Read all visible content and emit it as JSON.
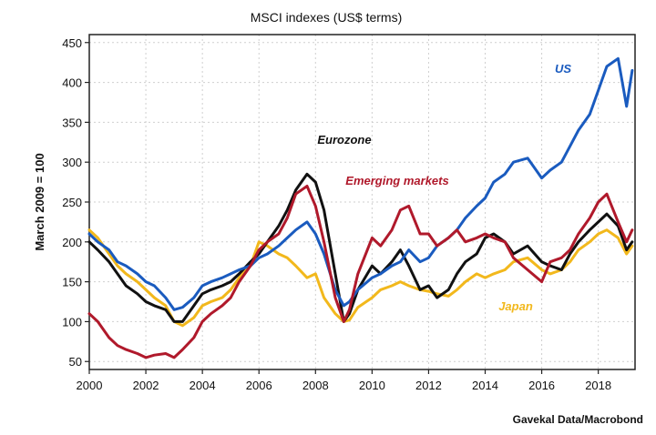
{
  "chart_data": {
    "type": "line",
    "title": "MSCI indexes (US$ terms)",
    "ylabel": "March 2009 = 100",
    "xlabel": "",
    "source": "Gavekal Data/Macrobond",
    "xlim": [
      2000,
      2019.3
    ],
    "ylim": [
      40,
      460
    ],
    "x_ticks": [
      2000,
      2002,
      2004,
      2006,
      2008,
      2010,
      2012,
      2014,
      2016,
      2018
    ],
    "y_ticks": [
      50,
      100,
      150,
      200,
      250,
      300,
      350,
      400,
      450
    ],
    "grid": true,
    "series": [
      {
        "name": "Japan",
        "color": "#f2b81c",
        "x": [
          2000.0,
          2000.3,
          2000.7,
          2001.0,
          2001.3,
          2001.7,
          2002.0,
          2002.3,
          2002.7,
          2003.0,
          2003.3,
          2003.7,
          2004.0,
          2004.3,
          2004.7,
          2005.0,
          2005.3,
          2005.7,
          2006.0,
          2006.3,
          2006.7,
          2007.0,
          2007.3,
          2007.7,
          2008.0,
          2008.3,
          2008.7,
          2009.0,
          2009.2,
          2009.5,
          2010.0,
          2010.3,
          2010.7,
          2011.0,
          2011.3,
          2011.7,
          2012.0,
          2012.3,
          2012.7,
          2013.0,
          2013.3,
          2013.7,
          2014.0,
          2014.3,
          2014.7,
          2015.0,
          2015.5,
          2016.0,
          2016.3,
          2016.7,
          2017.0,
          2017.3,
          2017.7,
          2018.0,
          2018.3,
          2018.7,
          2019.0,
          2019.2
        ],
        "values": [
          215,
          205,
          185,
          170,
          160,
          150,
          140,
          130,
          120,
          100,
          95,
          105,
          120,
          125,
          130,
          140,
          155,
          170,
          200,
          195,
          185,
          180,
          170,
          155,
          160,
          130,
          110,
          100,
          102,
          118,
          130,
          140,
          145,
          150,
          145,
          140,
          138,
          135,
          132,
          140,
          150,
          160,
          155,
          160,
          165,
          175,
          180,
          165,
          160,
          165,
          175,
          190,
          200,
          210,
          215,
          205,
          185,
          195
        ]
      },
      {
        "name": "Eurozone",
        "color": "#111111",
        "x": [
          2000.0,
          2000.3,
          2000.7,
          2001.0,
          2001.3,
          2001.7,
          2002.0,
          2002.3,
          2002.7,
          2003.0,
          2003.3,
          2003.7,
          2004.0,
          2004.3,
          2004.7,
          2005.0,
          2005.3,
          2005.7,
          2006.0,
          2006.3,
          2006.7,
          2007.0,
          2007.3,
          2007.7,
          2008.0,
          2008.3,
          2008.7,
          2009.0,
          2009.2,
          2009.5,
          2010.0,
          2010.3,
          2010.7,
          2011.0,
          2011.3,
          2011.7,
          2012.0,
          2012.3,
          2012.7,
          2013.0,
          2013.3,
          2013.7,
          2014.0,
          2014.3,
          2014.7,
          2015.0,
          2015.5,
          2016.0,
          2016.3,
          2016.7,
          2017.0,
          2017.3,
          2017.7,
          2018.0,
          2018.3,
          2018.7,
          2019.0,
          2019.2
        ],
        "values": [
          200,
          190,
          175,
          160,
          145,
          135,
          125,
          120,
          115,
          100,
          100,
          120,
          135,
          140,
          145,
          150,
          160,
          175,
          185,
          200,
          220,
          240,
          265,
          285,
          275,
          240,
          160,
          100,
          110,
          140,
          170,
          160,
          175,
          190,
          170,
          140,
          145,
          130,
          140,
          160,
          175,
          185,
          205,
          210,
          200,
          185,
          195,
          175,
          170,
          165,
          185,
          200,
          215,
          225,
          235,
          220,
          190,
          200
        ]
      },
      {
        "name": "US",
        "color": "#1a5bbf",
        "x": [
          2000.0,
          2000.3,
          2000.7,
          2001.0,
          2001.3,
          2001.7,
          2002.0,
          2002.3,
          2002.7,
          2003.0,
          2003.3,
          2003.7,
          2004.0,
          2004.3,
          2004.7,
          2005.0,
          2005.3,
          2005.7,
          2006.0,
          2006.3,
          2006.7,
          2007.0,
          2007.3,
          2007.7,
          2008.0,
          2008.3,
          2008.7,
          2009.0,
          2009.2,
          2009.5,
          2010.0,
          2010.3,
          2010.7,
          2011.0,
          2011.3,
          2011.7,
          2012.0,
          2012.3,
          2012.7,
          2013.0,
          2013.3,
          2013.7,
          2014.0,
          2014.3,
          2014.7,
          2015.0,
          2015.5,
          2016.0,
          2016.3,
          2016.7,
          2017.0,
          2017.3,
          2017.7,
          2018.0,
          2018.3,
          2018.7,
          2019.0,
          2019.2
        ],
        "values": [
          210,
          200,
          190,
          175,
          170,
          160,
          150,
          145,
          130,
          115,
          118,
          130,
          145,
          150,
          155,
          160,
          165,
          170,
          180,
          185,
          195,
          205,
          215,
          225,
          210,
          185,
          140,
          120,
          125,
          140,
          155,
          160,
          170,
          175,
          190,
          175,
          180,
          195,
          205,
          215,
          230,
          245,
          255,
          275,
          285,
          300,
          305,
          280,
          290,
          300,
          320,
          340,
          360,
          390,
          420,
          430,
          370,
          415
        ]
      },
      {
        "name": "Emerging markets",
        "color": "#b0192b",
        "x": [
          2000.0,
          2000.3,
          2000.7,
          2001.0,
          2001.3,
          2001.7,
          2002.0,
          2002.3,
          2002.7,
          2003.0,
          2003.3,
          2003.7,
          2004.0,
          2004.3,
          2004.7,
          2005.0,
          2005.3,
          2005.7,
          2006.0,
          2006.3,
          2006.7,
          2007.0,
          2007.3,
          2007.7,
          2008.0,
          2008.3,
          2008.7,
          2009.0,
          2009.2,
          2009.5,
          2010.0,
          2010.3,
          2010.7,
          2011.0,
          2011.3,
          2011.7,
          2012.0,
          2012.3,
          2012.7,
          2013.0,
          2013.3,
          2013.7,
          2014.0,
          2014.3,
          2014.7,
          2015.0,
          2015.5,
          2016.0,
          2016.3,
          2016.7,
          2017.0,
          2017.3,
          2017.7,
          2018.0,
          2018.3,
          2018.7,
          2019.0,
          2019.2
        ],
        "values": [
          110,
          100,
          80,
          70,
          65,
          60,
          55,
          58,
          60,
          55,
          65,
          80,
          100,
          110,
          120,
          130,
          150,
          170,
          190,
          200,
          210,
          230,
          260,
          270,
          245,
          200,
          130,
          100,
          115,
          160,
          205,
          195,
          215,
          240,
          245,
          210,
          210,
          195,
          205,
          215,
          200,
          205,
          210,
          205,
          200,
          180,
          165,
          150,
          175,
          180,
          190,
          210,
          230,
          250,
          260,
          225,
          200,
          215
        ]
      }
    ],
    "annotations": [
      {
        "text": "US",
        "series": "US"
      },
      {
        "text": "Eurozone",
        "series": "Eurozone"
      },
      {
        "text": "Emerging markets",
        "series": "Emerging markets"
      },
      {
        "text": "Japan",
        "series": "Japan"
      }
    ]
  }
}
